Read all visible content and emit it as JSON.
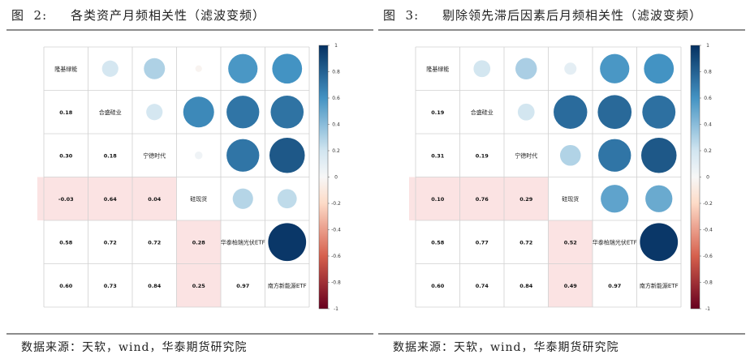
{
  "chart_data": [
    {
      "type": "heatmap",
      "title": "图  2:     各类资产月频相关性（滤波变频）",
      "source": "数据来源：天软，wind，华泰期货研究院",
      "labels": [
        "隆基绿能",
        "合盛硅业",
        "宁德时代",
        "硅现货",
        "华泰柏瑞光伏ETF",
        "南方新能源ETF"
      ],
      "matrix": [
        [
          1.0,
          0.18,
          0.3,
          -0.03,
          0.58,
          0.6
        ],
        [
          0.18,
          1.0,
          0.18,
          0.64,
          0.72,
          0.73
        ],
        [
          0.3,
          0.18,
          1.0,
          0.04,
          0.72,
          0.84
        ],
        [
          -0.03,
          0.64,
          0.04,
          1.0,
          0.28,
          0.25
        ],
        [
          0.58,
          0.72,
          0.72,
          0.28,
          1.0,
          0.97
        ],
        [
          0.6,
          0.73,
          0.84,
          0.25,
          0.97,
          1.0
        ]
      ],
      "value_labels": [
        [
          "",
          "",
          "",
          "",
          "",
          ""
        ],
        [
          "0.18",
          "",
          "",
          "",
          "",
          ""
        ],
        [
          "0.30",
          "0.18",
          "",
          "",
          "",
          ""
        ],
        [
          "-0.03",
          "0.64",
          "0.04",
          "",
          "",
          ""
        ],
        [
          "0.58",
          "0.72",
          "0.72",
          "0.28",
          "",
          ""
        ],
        [
          "0.60",
          "0.73",
          "0.84",
          "0.25",
          "0.97",
          ""
        ]
      ],
      "highlight_cells": [
        [
          3,
          0
        ],
        [
          3,
          1
        ],
        [
          3,
          2
        ],
        [
          4,
          3
        ],
        [
          5,
          3
        ]
      ],
      "colorbar": {
        "ticks": [
          1,
          0.8,
          0.6,
          0.4,
          0.2,
          0,
          -0.2,
          -0.4,
          -0.6,
          -0.8,
          -1
        ],
        "tick_labels": [
          "1",
          "0.8",
          "0.6",
          "0.4",
          "0.2",
          "0",
          "-0.2",
          "-0.4",
          "-0.6",
          "-0.8",
          "-1"
        ]
      }
    },
    {
      "type": "heatmap",
      "title": "图  3:     剔除领先滞后因素后月频相关性（滤波变频）",
      "source": "数据来源：天软，wind，华泰期货研究院",
      "labels": [
        "隆基绿能",
        "合盛硅业",
        "宁德时代",
        "硅现货",
        "华泰柏瑞光伏ETF",
        "南方新能源ETF"
      ],
      "matrix": [
        [
          1.0,
          0.19,
          0.31,
          0.1,
          0.58,
          0.6
        ],
        [
          0.19,
          1.0,
          0.19,
          0.76,
          0.77,
          0.74
        ],
        [
          0.31,
          0.19,
          1.0,
          0.29,
          0.72,
          0.84
        ],
        [
          0.1,
          0.76,
          0.29,
          1.0,
          0.52,
          0.49
        ],
        [
          0.58,
          0.77,
          0.72,
          0.52,
          1.0,
          0.97
        ],
        [
          0.6,
          0.74,
          0.84,
          0.49,
          0.97,
          1.0
        ]
      ],
      "value_labels": [
        [
          "",
          "",
          "",
          "",
          "",
          ""
        ],
        [
          "0.19",
          "",
          "",
          "",
          "",
          ""
        ],
        [
          "0.31",
          "0.19",
          "",
          "",
          "",
          ""
        ],
        [
          "0.10",
          "0.76",
          "0.29",
          "",
          "",
          ""
        ],
        [
          "0.58",
          "0.77",
          "0.72",
          "0.52",
          "",
          ""
        ],
        [
          "0.60",
          "0.74",
          "0.84",
          "0.49",
          "0.97",
          ""
        ]
      ],
      "highlight_cells": [
        [
          3,
          0
        ],
        [
          3,
          1
        ],
        [
          3,
          2
        ],
        [
          4,
          3
        ],
        [
          5,
          3
        ]
      ],
      "colorbar": {
        "ticks": [
          1,
          0.8,
          0.6,
          0.4,
          0.2,
          0,
          -0.2,
          -0.4,
          -0.6,
          -0.8,
          -1
        ],
        "tick_labels": [
          "1",
          "0.8",
          "0.6",
          "0.4",
          "0.2",
          "0",
          "-0.2",
          "-0.4",
          "-0.6",
          "-0.8",
          "-1"
        ]
      }
    }
  ],
  "colors": {
    "positive_strong": "#053061",
    "positive_mid": "#4393c3",
    "positive_light": "#d1e5f0",
    "neutral": "#f7f7f7",
    "negative_light": "#fddbc7",
    "negative_mid": "#d6604d",
    "negative_strong": "#67001f",
    "highlight": "#fbe3e3",
    "rule": "#8c8c8c"
  }
}
